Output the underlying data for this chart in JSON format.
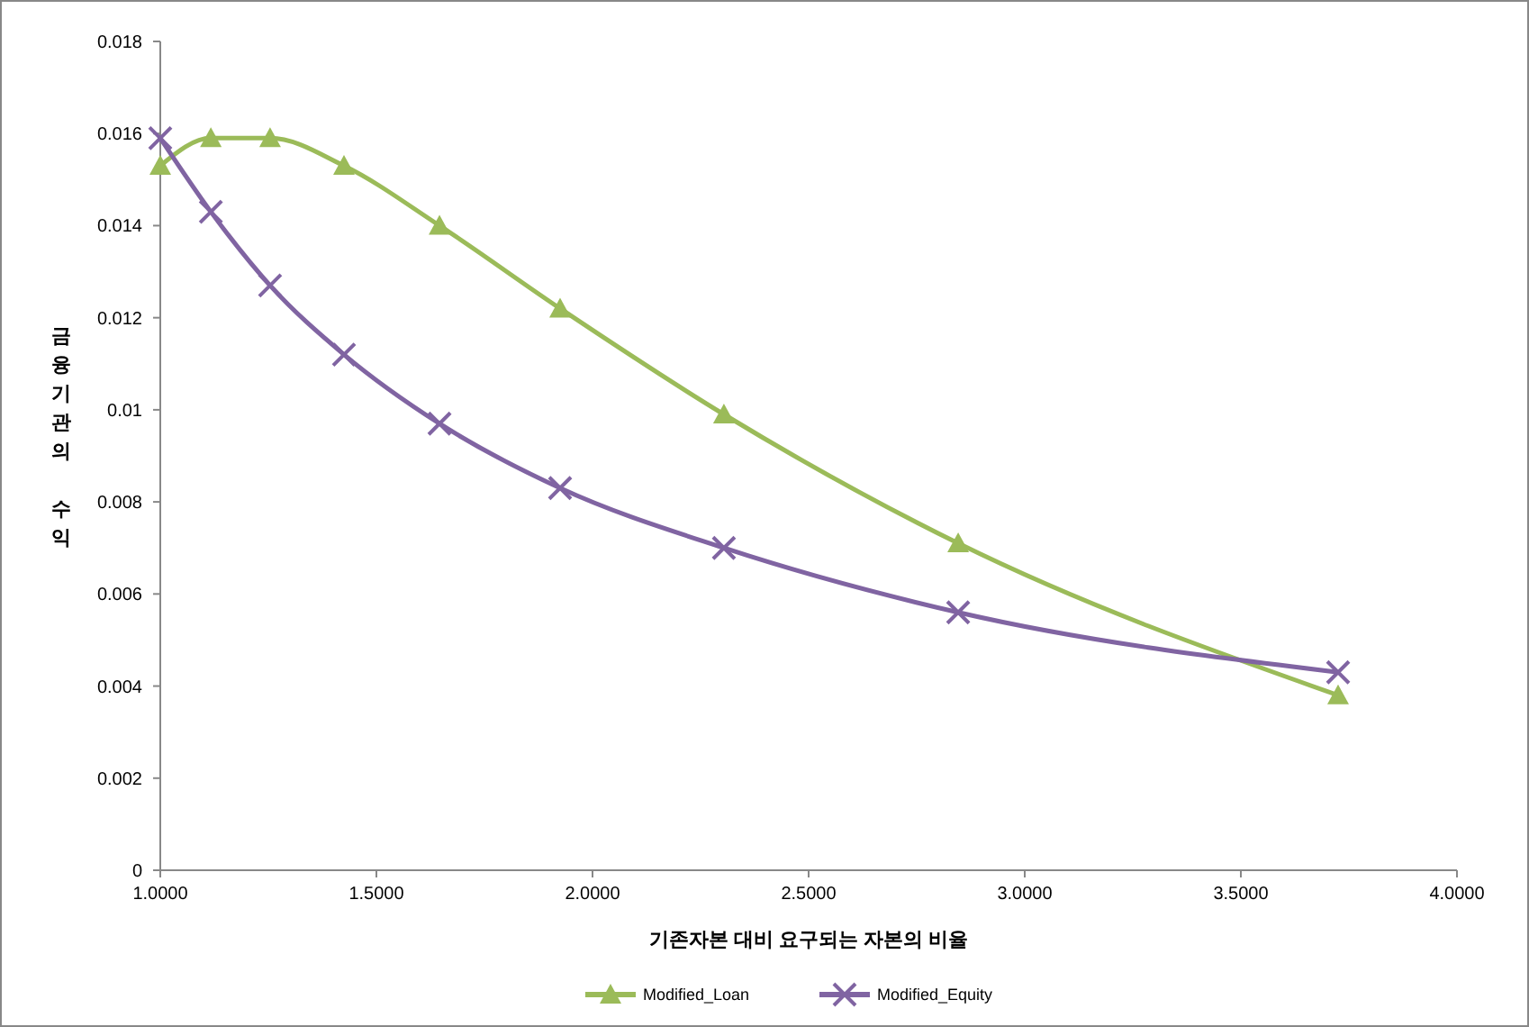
{
  "chart_data": {
    "type": "line",
    "xlabel": "기존자본 대비 요구되는 자본의 비율",
    "ylabel": "금융기관의 수익",
    "xlim": [
      1,
      4
    ],
    "xticks": [
      {
        "value": 1,
        "label": "1.0000"
      },
      {
        "value": 1.5,
        "label": "1.5000"
      },
      {
        "value": 2,
        "label": "2.0000"
      },
      {
        "value": 2.5,
        "label": "2.5000"
      },
      {
        "value": 3,
        "label": "3.0000"
      },
      {
        "value": 3.5,
        "label": "3.5000"
      },
      {
        "value": 4,
        "label": "4.0000"
      }
    ],
    "ylim": [
      0,
      0.018
    ],
    "yticks": [
      0,
      0.002,
      0.004,
      0.006,
      0.008,
      0.01,
      0.012,
      0.014,
      0.016,
      0.018
    ],
    "legend": "bottom",
    "grid": false,
    "line_style": "solid",
    "x": [
      1.0,
      1.117,
      1.254,
      1.425,
      1.646,
      1.925,
      2.304,
      2.846,
      3.725
    ],
    "series": [
      {
        "name": "Modified_Loan",
        "color": "#9bbb59",
        "marker": "triangle",
        "values": [
          0.0153,
          0.0159,
          0.0159,
          0.0153,
          0.014,
          0.0122,
          0.0099,
          0.0071,
          0.0038
        ]
      },
      {
        "name": "Modified_Equity",
        "color": "#8064a2",
        "marker": "cross",
        "values": [
          0.0159,
          0.0143,
          0.0127,
          0.0112,
          0.0097,
          0.0083,
          0.007,
          0.0056,
          0.0043
        ]
      }
    ]
  }
}
